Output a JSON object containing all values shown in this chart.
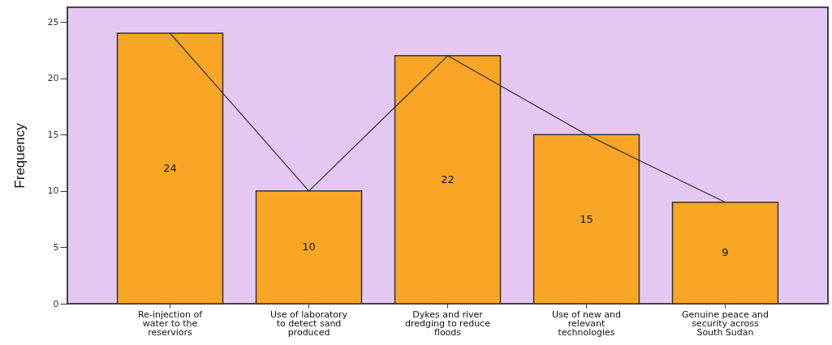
{
  "chart_data": {
    "type": "bar",
    "ylabel": "Frequency",
    "categories": [
      "Re-injection of water to the reserviors",
      "Use of laboratory to detect sand produced",
      "Dykes and river dredging to reduce floods",
      "Use of new and relevant technologies",
      "Genuine peace and security across South Sudan"
    ],
    "series": [
      {
        "color": "#f9a627",
        "values": [
          24,
          10,
          22,
          15,
          9
        ],
        "value_labels": [
          "24",
          "10",
          "22",
          "15",
          "9"
        ]
      },
      {
        "type": "line",
        "color": "#2b2b2b",
        "values": [
          24,
          10,
          22,
          15,
          9
        ]
      }
    ],
    "ylim": [
      0,
      26.3
    ],
    "yticks": [
      0,
      5,
      10,
      15,
      20,
      25
    ]
  }
}
